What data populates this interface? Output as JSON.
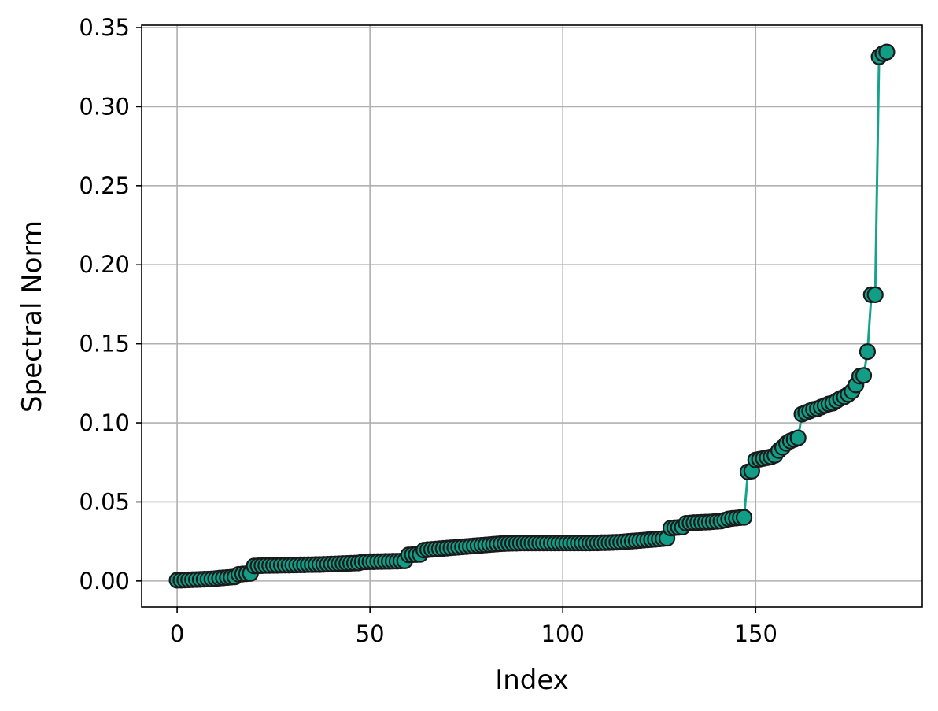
{
  "chart_data": {
    "type": "line",
    "xlabel": "Index",
    "ylabel": "Spectral Norm",
    "xlim": [
      -9.2,
      193.2
    ],
    "ylim": [
      -0.0165,
      0.3515
    ],
    "xticks": [
      0,
      50,
      100,
      150
    ],
    "xtick_labels": [
      "0",
      "50",
      "100",
      "150"
    ],
    "yticks": [
      0.0,
      0.05,
      0.1,
      0.15,
      0.2,
      0.25,
      0.3,
      0.35
    ],
    "ytick_labels": [
      "0.00",
      "0.05",
      "0.10",
      "0.15",
      "0.20",
      "0.25",
      "0.30",
      "0.35"
    ],
    "grid": true,
    "colors": {
      "line": "#17a38b",
      "marker_fill": "#129e86",
      "marker_edge": "#1a1a1a"
    },
    "series": [
      {
        "marker": "circle",
        "x": [
          0,
          1,
          2,
          3,
          4,
          5,
          6,
          7,
          8,
          9,
          10,
          11,
          12,
          13,
          14,
          15,
          16,
          17,
          18,
          19,
          20,
          21,
          22,
          23,
          24,
          25,
          26,
          27,
          28,
          29,
          30,
          31,
          32,
          33,
          34,
          35,
          36,
          37,
          38,
          39,
          40,
          41,
          42,
          43,
          44,
          45,
          46,
          47,
          48,
          49,
          50,
          51,
          52,
          53,
          54,
          55,
          56,
          57,
          58,
          59,
          60,
          61,
          62,
          63,
          64,
          65,
          66,
          67,
          68,
          69,
          70,
          71,
          72,
          73,
          74,
          75,
          76,
          77,
          78,
          79,
          80,
          81,
          82,
          83,
          84,
          85,
          86,
          87,
          88,
          89,
          90,
          91,
          92,
          93,
          94,
          95,
          96,
          97,
          98,
          99,
          100,
          101,
          102,
          103,
          104,
          105,
          106,
          107,
          108,
          109,
          110,
          111,
          112,
          113,
          114,
          115,
          116,
          117,
          118,
          119,
          120,
          121,
          122,
          123,
          124,
          125,
          126,
          127,
          128,
          129,
          130,
          131,
          132,
          133,
          134,
          135,
          136,
          137,
          138,
          139,
          140,
          141,
          142,
          143,
          144,
          145,
          146,
          147,
          148,
          149,
          150,
          151,
          152,
          153,
          154,
          155,
          156,
          157,
          158,
          159,
          160,
          161,
          162,
          163,
          164,
          165,
          166,
          167,
          168,
          169,
          170,
          171,
          172,
          173,
          174,
          175,
          176,
          177,
          178,
          179,
          180,
          181,
          182,
          183,
          184
        ],
        "y": [
          0.0005,
          0.0005,
          0.0006,
          0.0007,
          0.0008,
          0.0009,
          0.001,
          0.0011,
          0.0012,
          0.0013,
          0.0015,
          0.0018,
          0.002,
          0.0022,
          0.0024,
          0.0026,
          0.0042,
          0.0044,
          0.0046,
          0.0048,
          0.0095,
          0.0096,
          0.0097,
          0.0098,
          0.0098,
          0.0099,
          0.0099,
          0.01,
          0.01,
          0.01,
          0.0101,
          0.0101,
          0.0102,
          0.0102,
          0.0103,
          0.0103,
          0.0104,
          0.0104,
          0.0105,
          0.0106,
          0.0107,
          0.0108,
          0.0109,
          0.011,
          0.0111,
          0.0112,
          0.0113,
          0.0114,
          0.012,
          0.0121,
          0.0122,
          0.0122,
          0.0123,
          0.0123,
          0.0124,
          0.0124,
          0.0125,
          0.0125,
          0.0126,
          0.0127,
          0.0165,
          0.0166,
          0.0167,
          0.0168,
          0.0195,
          0.0198,
          0.02,
          0.0202,
          0.0204,
          0.0206,
          0.0208,
          0.021,
          0.0212,
          0.0214,
          0.0216,
          0.0218,
          0.022,
          0.0222,
          0.0224,
          0.0226,
          0.0228,
          0.023,
          0.0232,
          0.0234,
          0.0236,
          0.0237,
          0.0238,
          0.0239,
          0.0239,
          0.024,
          0.024,
          0.024,
          0.024,
          0.024,
          0.024,
          0.024,
          0.024,
          0.024,
          0.024,
          0.024,
          0.024,
          0.024,
          0.024,
          0.024,
          0.024,
          0.024,
          0.024,
          0.024,
          0.0241,
          0.0241,
          0.0242,
          0.0242,
          0.0243,
          0.0244,
          0.0245,
          0.0246,
          0.0248,
          0.025,
          0.0252,
          0.0254,
          0.0256,
          0.0258,
          0.026,
          0.0262,
          0.0264,
          0.0266,
          0.0268,
          0.027,
          0.0335,
          0.0337,
          0.0339,
          0.0341,
          0.0365,
          0.0367,
          0.0369,
          0.037,
          0.0371,
          0.0372,
          0.0373,
          0.0375,
          0.0377,
          0.0379,
          0.0385,
          0.0392,
          0.0396,
          0.0398,
          0.0401,
          0.0402,
          0.069,
          0.0695,
          0.0765,
          0.077,
          0.0775,
          0.078,
          0.0785,
          0.0795,
          0.0825,
          0.0845,
          0.087,
          0.0885,
          0.0895,
          0.0905,
          0.1055,
          0.1065,
          0.1075,
          0.1085,
          0.109,
          0.11,
          0.111,
          0.112,
          0.1125,
          0.114,
          0.1155,
          0.1165,
          0.118,
          0.12,
          0.124,
          0.1295,
          0.13,
          0.145,
          0.181,
          0.181,
          0.3315,
          0.3335,
          0.3345
        ]
      }
    ]
  }
}
